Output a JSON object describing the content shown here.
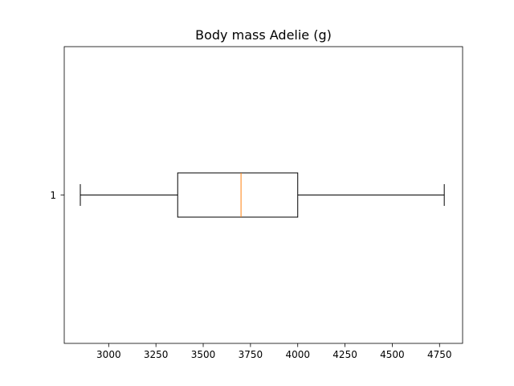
{
  "chart_data": {
    "type": "boxplot",
    "orientation": "horizontal",
    "title": "Body mass Adelie (g)",
    "xlabel": "",
    "ylabel": "",
    "xlim": [
      2765,
      4872
    ],
    "x_ticks": [
      3000,
      3250,
      3500,
      3750,
      4000,
      4250,
      4500,
      4750
    ],
    "x_tick_labels": [
      "3000",
      "3250",
      "3500",
      "3750",
      "4000",
      "4250",
      "4500",
      "4750"
    ],
    "y_ticks": [
      1
    ],
    "y_tick_labels": [
      "1"
    ],
    "grid": false,
    "boxes": [
      {
        "position": 1,
        "label": "1",
        "whisker_low": 2850,
        "q1": 3365,
        "median": 3700,
        "q3": 4000,
        "whisker_high": 4775
      }
    ],
    "colors": {
      "box": "#000000",
      "median": "#ff7f0e",
      "whisker": "#000000",
      "axes": "#000000"
    }
  }
}
